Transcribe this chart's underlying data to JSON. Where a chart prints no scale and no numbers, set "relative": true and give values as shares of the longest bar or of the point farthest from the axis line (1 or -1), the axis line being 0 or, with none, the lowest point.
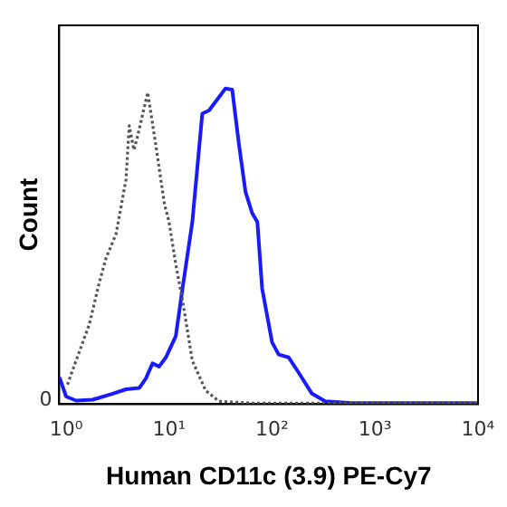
{
  "chart_data": {
    "type": "line",
    "relative": true,
    "xlabel": "Human CD11c (3.9) PE-Cy7",
    "ylabel": "Count",
    "log": "x",
    "xlim": [
      0.86,
      10000
    ],
    "xticks": [
      {
        "value": 1,
        "label": "10⁰"
      },
      {
        "value": 10,
        "label": "10¹"
      },
      {
        "value": 100,
        "label": "10²"
      },
      {
        "value": 1000,
        "label": "10³"
      },
      {
        "value": 10000,
        "label": "10⁴"
      }
    ],
    "tick_labels": "x",
    "annotations": [
      "0"
    ],
    "grid": false,
    "legend": false,
    "marker": "none",
    "series": [
      {
        "color": "#555555",
        "line_style": "dotted",
        "x": [
          1.03,
          1.25,
          1.68,
          2.1,
          2.44,
          3.05,
          3.81,
          4.1,
          4.55,
          4.98,
          6.2,
          7.4,
          9.0,
          10,
          11.6,
          13.5,
          16.8,
          22.6,
          30.5,
          64,
          10000
        ],
        "values": [
          0.061,
          0.137,
          0.252,
          0.385,
          0.462,
          0.538,
          0.71,
          0.882,
          0.805,
          0.853,
          0.987,
          0.824,
          0.634,
          0.576,
          0.443,
          0.328,
          0.137,
          0.042,
          0.008,
          0.002,
          0.002
        ]
      },
      {
        "color": "#1a1aff",
        "line_style": "solid",
        "x": [
          0.86,
          1.0,
          1.25,
          1.81,
          2.83,
          3.81,
          5.13,
          5.94,
          6.9,
          8.0,
          9.3,
          11.6,
          13.5,
          16.8,
          21,
          24.4,
          28.3,
          35.3,
          41,
          47.6,
          55.2,
          64,
          72,
          80,
          100,
          116,
          145,
          181,
          244,
          328,
          594,
          10000
        ],
        "values": [
          0.084,
          0.023,
          0.01,
          0.013,
          0.032,
          0.046,
          0.05,
          0.08,
          0.128,
          0.118,
          0.147,
          0.214,
          0.366,
          0.576,
          0.92,
          0.93,
          0.958,
          1,
          0.996,
          0.824,
          0.672,
          0.605,
          0.576,
          0.366,
          0.195,
          0.156,
          0.147,
          0.099,
          0.032,
          0.008,
          0.002,
          0.002
        ]
      }
    ]
  }
}
